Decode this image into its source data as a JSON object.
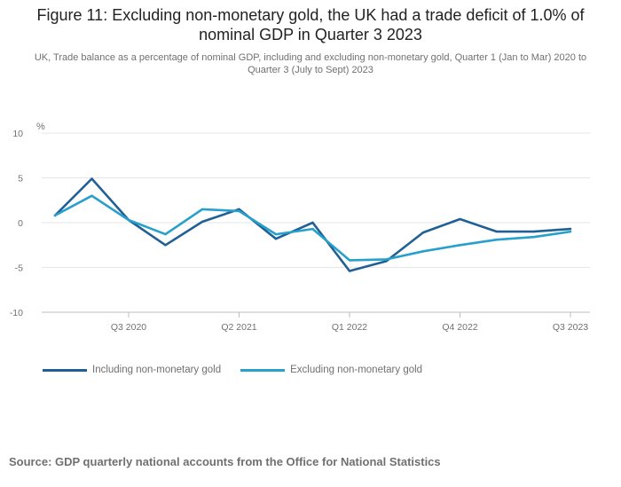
{
  "title": "Figure 11: Excluding non-monetary gold, the UK had a trade deficit of 1.0% of nominal GDP in Quarter 3 2023",
  "subtitle": "UK, Trade balance as a percentage of nominal GDP, including and excluding non-monetary gold, Quarter 1 (Jan to Mar) 2020 to Quarter 3 (July to Sept) 2023",
  "source": "Source: GDP quarterly national accounts from the Office for National Statistics",
  "colors": {
    "including": "#206095",
    "excluding": "#27a0cc",
    "grid": "#e5e5e5",
    "axis": "#bdbdbd",
    "tick_text": "#707070"
  },
  "chart_data": {
    "type": "line",
    "ylabel": "%",
    "ylim": [
      -10,
      10
    ],
    "yticks": [
      10,
      5,
      0,
      -5,
      -10
    ],
    "x": [
      "Q1 2020",
      "Q2 2020",
      "Q3 2020",
      "Q4 2020",
      "Q1 2021",
      "Q2 2021",
      "Q3 2021",
      "Q4 2021",
      "Q1 2022",
      "Q2 2022",
      "Q3 2022",
      "Q4 2022",
      "Q1 2023",
      "Q2 2023",
      "Q3 2023"
    ],
    "xtick_labels": [
      "Q3 2020",
      "Q2 2021",
      "Q1 2022",
      "Q4 2022",
      "Q3 2023"
    ],
    "grid": true,
    "legend": "bottom",
    "series": [
      {
        "name": "Including non-monetary gold",
        "values": [
          0.8,
          4.9,
          0.3,
          -2.5,
          0.1,
          1.5,
          -1.8,
          0.0,
          -5.4,
          -4.3,
          -1.1,
          0.4,
          -1.0,
          -1.0,
          -0.7
        ]
      },
      {
        "name": "Excluding non-monetary gold",
        "values": [
          0.8,
          3.0,
          0.3,
          -1.3,
          1.5,
          1.3,
          -1.3,
          -0.7,
          -4.2,
          -4.1,
          -3.2,
          -2.5,
          -1.9,
          -1.6,
          -1.0
        ]
      }
    ]
  }
}
